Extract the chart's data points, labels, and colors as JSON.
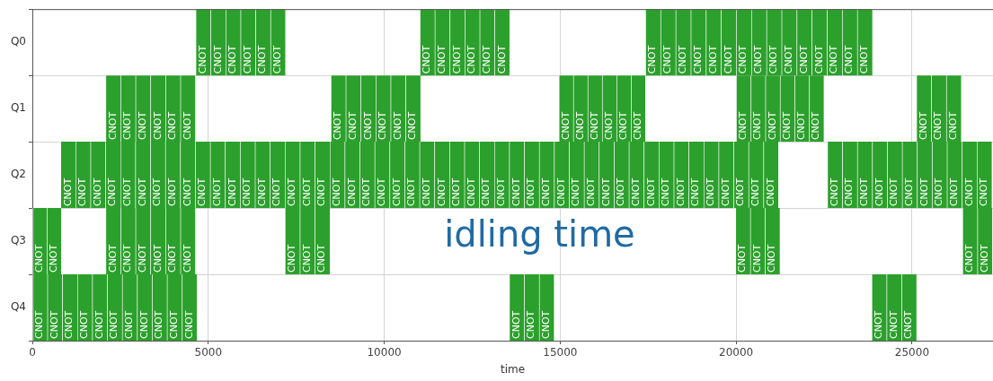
{
  "chart_data": {
    "type": "bar",
    "orientation": "horizontal",
    "categories": [
      "Q0",
      "Q1",
      "Q2",
      "Q3",
      "Q4"
    ],
    "color": "#2ca02c",
    "xlabel": "time",
    "xlim": [
      0,
      27300
    ],
    "xticks": [
      0,
      5000,
      10000,
      15000,
      20000,
      25000
    ],
    "grid": true,
    "annotations": [
      "idling time"
    ],
    "series": [
      {
        "values": [
          425,
          425,
          425,
          410,
          425
        ],
        "base": [
          4640,
          2080,
          800,
          0,
          0
        ],
        "value_labels": [
          "CNOT",
          "CNOT",
          "CNOT",
          "CNOT",
          "CNOT"
        ]
      },
      {
        "values": [
          425,
          425,
          425,
          410,
          425
        ],
        "base": [
          5065,
          2505,
          1225,
          410,
          425
        ],
        "value_labels": [
          "CNOT",
          "CNOT",
          "CNOT",
          "CNOT",
          "CNOT"
        ]
      },
      {
        "values": [
          425,
          425,
          425,
          425,
          425
        ],
        "base": [
          5490,
          2930,
          1650,
          2080,
          850
        ],
        "value_labels": [
          "CNOT",
          "CNOT",
          "CNOT",
          "CNOT",
          "CNOT"
        ]
      },
      {
        "values": [
          425,
          425,
          425,
          425,
          425
        ],
        "base": [
          5915,
          3355,
          2075,
          2505,
          1275
        ],
        "value_labels": [
          "CNOT",
          "CNOT",
          "CNOT",
          "CNOT",
          "CNOT"
        ]
      },
      {
        "values": [
          425,
          425,
          425,
          425,
          425
        ],
        "base": [
          6340,
          3780,
          2500,
          2930,
          1700
        ],
        "value_labels": [
          "CNOT",
          "CNOT",
          "CNOT",
          "CNOT",
          "CNOT"
        ]
      },
      {
        "values": [
          425,
          425,
          425,
          425,
          425
        ],
        "base": [
          6765,
          4205,
          2925,
          3355,
          2125
        ],
        "value_labels": [
          "CNOT",
          "CNOT",
          "CNOT",
          "CNOT",
          "CNOT"
        ]
      },
      {
        "values": [
          425,
          425,
          425,
          425,
          425
        ],
        "base": [
          11010,
          8480,
          3350,
          3780,
          2550
        ],
        "value_labels": [
          "CNOT",
          "CNOT",
          "CNOT",
          "CNOT",
          "CNOT"
        ]
      },
      {
        "values": [
          425,
          425,
          425,
          425,
          425
        ],
        "base": [
          11435,
          8905,
          3775,
          4205,
          2975
        ],
        "value_labels": [
          "CNOT",
          "CNOT",
          "CNOT",
          "CNOT",
          "CNOT"
        ]
      },
      {
        "values": [
          425,
          425,
          425,
          425,
          425
        ],
        "base": [
          11860,
          9330,
          4200,
          7175,
          3400
        ],
        "value_labels": [
          "CNOT",
          "CNOT",
          "CNOT",
          "CNOT",
          "CNOT"
        ]
      },
      {
        "values": [
          425,
          425,
          425,
          425,
          425
        ],
        "base": [
          12285,
          9755,
          4625,
          7600,
          3825
        ],
        "value_labels": [
          "CNOT",
          "CNOT",
          "CNOT",
          "CNOT",
          "CNOT"
        ]
      },
      {
        "values": [
          425,
          425,
          425,
          425,
          425
        ],
        "base": [
          12710,
          10180,
          5050,
          8025,
          4250
        ],
        "value_labels": [
          "CNOT",
          "CNOT",
          "CNOT",
          "CNOT",
          "CNOT"
        ]
      },
      {
        "values": [
          425,
          425,
          425,
          420,
          425
        ],
        "base": [
          13135,
          10605,
          5475,
          19980,
          13550
        ],
        "value_labels": [
          "CNOT",
          "CNOT",
          "CNOT",
          "CNOT",
          "CNOT"
        ]
      },
      {
        "values": [
          430,
          410,
          425,
          420,
          425
        ],
        "base": [
          17420,
          14960,
          5900,
          20400,
          13975
        ],
        "value_labels": [
          "CNOT",
          "CNOT",
          "CNOT",
          "CNOT",
          "CNOT"
        ]
      },
      {
        "values": [
          430,
          410,
          425,
          420,
          425
        ],
        "base": [
          17850,
          15370,
          6325,
          20820,
          14400
        ],
        "value_labels": [
          "CNOT",
          "CNOT",
          "CNOT",
          "CNOT",
          "CNOT"
        ]
      },
      {
        "values": [
          430,
          410,
          425,
          425,
          425
        ],
        "base": [
          18280,
          15780,
          6750,
          26430,
          23850
        ],
        "value_labels": [
          "CNOT",
          "CNOT",
          "CNOT",
          "CNOT",
          "CNOT"
        ]
      },
      {
        "values": [
          430,
          410,
          425,
          425,
          425
        ],
        "base": [
          18710,
          16190,
          7175,
          26855,
          24275
        ],
        "value_labels": [
          "CNOT",
          "CNOT",
          "CNOT",
          "CNOT",
          "CNOT"
        ]
      },
      {
        "values": [
          430,
          410,
          425,
          null,
          425
        ],
        "base": [
          19140,
          16600,
          7600,
          null,
          24700
        ],
        "value_labels": [
          "CNOT",
          "CNOT",
          "CNOT",
          null,
          "CNOT"
        ]
      },
      {
        "values": [
          430,
          410,
          425,
          null,
          null
        ],
        "base": [
          19570,
          17010,
          8025,
          null,
          null
        ],
        "value_labels": [
          "CNOT",
          "CNOT",
          "CNOT",
          null,
          null
        ]
      },
      {
        "values": [
          430,
          415,
          425,
          null,
          null
        ],
        "base": [
          20000,
          20000,
          8450,
          null,
          null
        ],
        "value_labels": [
          "CNOT",
          "CNOT",
          "CNOT",
          null,
          null
        ]
      },
      {
        "values": [
          430,
          415,
          425,
          null,
          null
        ],
        "base": [
          20430,
          20415,
          8875,
          null,
          null
        ],
        "value_labels": [
          "CNOT",
          "CNOT",
          "CNOT",
          null,
          null
        ]
      },
      {
        "values": [
          430,
          415,
          425,
          null,
          null
        ],
        "base": [
          20860,
          20830,
          9300,
          null,
          null
        ],
        "value_labels": [
          "CNOT",
          "CNOT",
          "CNOT",
          null,
          null
        ]
      },
      {
        "values": [
          430,
          415,
          425,
          null,
          null
        ],
        "base": [
          21290,
          21245,
          9725,
          null,
          null
        ],
        "value_labels": [
          "CNOT",
          "CNOT",
          "CNOT",
          null,
          null
        ]
      },
      {
        "values": [
          430,
          415,
          425,
          null,
          null
        ],
        "base": [
          21720,
          21660,
          10150,
          null,
          null
        ],
        "value_labels": [
          "CNOT",
          "CNOT",
          "CNOT",
          null,
          null
        ]
      },
      {
        "values": [
          430,
          415,
          425,
          null,
          null
        ],
        "base": [
          22150,
          22075,
          10575,
          null,
          null
        ],
        "value_labels": [
          "CNOT",
          "CNOT",
          "CNOT",
          null,
          null
        ]
      },
      {
        "values": [
          430,
          425,
          425,
          null,
          null
        ],
        "base": [
          22580,
          25120,
          11000,
          null,
          null
        ],
        "value_labels": [
          "CNOT",
          "CNOT",
          "CNOT",
          null,
          null
        ]
      },
      {
        "values": [
          430,
          425,
          425,
          null,
          null
        ],
        "base": [
          23010,
          25545,
          11425,
          null,
          null
        ],
        "value_labels": [
          "CNOT",
          "CNOT",
          "CNOT",
          null,
          null
        ]
      },
      {
        "values": [
          430,
          425,
          425,
          null,
          null
        ],
        "base": [
          23440,
          25970,
          11850,
          null,
          null
        ],
        "value_labels": [
          "CNOT",
          "CNOT",
          "CNOT",
          null,
          null
        ]
      },
      {
        "values": [
          null,
          null,
          425,
          null,
          null
        ],
        "base": [
          null,
          null,
          12275,
          null,
          null
        ],
        "value_labels": [
          null,
          null,
          "CNOT",
          null,
          null
        ]
      },
      {
        "values": [
          null,
          null,
          425,
          null,
          null
        ],
        "base": [
          null,
          null,
          12700,
          null,
          null
        ],
        "value_labels": [
          null,
          null,
          "CNOT",
          null,
          null
        ]
      },
      {
        "values": [
          null,
          null,
          425,
          null,
          null
        ],
        "base": [
          null,
          null,
          13125,
          null,
          null
        ],
        "value_labels": [
          null,
          null,
          "CNOT",
          null,
          null
        ]
      },
      {
        "values": [
          null,
          null,
          425,
          null,
          null
        ],
        "base": [
          null,
          null,
          13550,
          null,
          null
        ],
        "value_labels": [
          null,
          null,
          "CNOT",
          null,
          null
        ]
      },
      {
        "values": [
          null,
          null,
          425,
          null,
          null
        ],
        "base": [
          null,
          null,
          13975,
          null,
          null
        ],
        "value_labels": [
          null,
          null,
          "CNOT",
          null,
          null
        ]
      },
      {
        "values": [
          null,
          null,
          425,
          null,
          null
        ],
        "base": [
          null,
          null,
          14400,
          null,
          null
        ],
        "value_labels": [
          null,
          null,
          "CNOT",
          null,
          null
        ]
      },
      {
        "values": [
          null,
          null,
          425,
          null,
          null
        ],
        "base": [
          null,
          null,
          14825,
          null,
          null
        ],
        "value_labels": [
          null,
          null,
          "CNOT",
          null,
          null
        ]
      },
      {
        "values": [
          null,
          null,
          425,
          null,
          null
        ],
        "base": [
          null,
          null,
          15250,
          null,
          null
        ],
        "value_labels": [
          null,
          null,
          "CNOT",
          null,
          null
        ]
      },
      {
        "values": [
          null,
          null,
          425,
          null,
          null
        ],
        "base": [
          null,
          null,
          15675,
          null,
          null
        ],
        "value_labels": [
          null,
          null,
          "CNOT",
          null,
          null
        ]
      },
      {
        "values": [
          null,
          null,
          425,
          null,
          null
        ],
        "base": [
          null,
          null,
          16100,
          null,
          null
        ],
        "value_labels": [
          null,
          null,
          "CNOT",
          null,
          null
        ]
      },
      {
        "values": [
          null,
          null,
          425,
          null,
          null
        ],
        "base": [
          null,
          null,
          16525,
          null,
          null
        ],
        "value_labels": [
          null,
          null,
          "CNOT",
          null,
          null
        ]
      },
      {
        "values": [
          null,
          null,
          425,
          null,
          null
        ],
        "base": [
          null,
          null,
          16950,
          null,
          null
        ],
        "value_labels": [
          null,
          null,
          "CNOT",
          null,
          null
        ]
      },
      {
        "values": [
          null,
          null,
          425,
          null,
          null
        ],
        "base": [
          null,
          null,
          17375,
          null,
          null
        ],
        "value_labels": [
          null,
          null,
          "CNOT",
          null,
          null
        ]
      },
      {
        "values": [
          null,
          null,
          425,
          null,
          null
        ],
        "base": [
          null,
          null,
          17800,
          null,
          null
        ],
        "value_labels": [
          null,
          null,
          "CNOT",
          null,
          null
        ]
      },
      {
        "values": [
          null,
          null,
          425,
          null,
          null
        ],
        "base": [
          null,
          null,
          18225,
          null,
          null
        ],
        "value_labels": [
          null,
          null,
          "CNOT",
          null,
          null
        ]
      },
      {
        "values": [
          null,
          null,
          425,
          null,
          null
        ],
        "base": [
          null,
          null,
          18650,
          null,
          null
        ],
        "value_labels": [
          null,
          null,
          "CNOT",
          null,
          null
        ]
      },
      {
        "values": [
          null,
          null,
          425,
          null,
          null
        ],
        "base": [
          null,
          null,
          19075,
          null,
          null
        ],
        "value_labels": [
          null,
          null,
          "CNOT",
          null,
          null
        ]
      },
      {
        "values": [
          null,
          null,
          425,
          null,
          null
        ],
        "base": [
          null,
          null,
          19500,
          null,
          null
        ],
        "value_labels": [
          null,
          null,
          "CNOT",
          null,
          null
        ]
      },
      {
        "values": [
          null,
          null,
          425,
          null,
          null
        ],
        "base": [
          null,
          null,
          19925,
          null,
          null
        ],
        "value_labels": [
          null,
          null,
          "CNOT",
          null,
          null
        ]
      },
      {
        "values": [
          null,
          null,
          425,
          null,
          null
        ],
        "base": [
          null,
          null,
          20350,
          null,
          null
        ],
        "value_labels": [
          null,
          null,
          "CNOT",
          null,
          null
        ]
      },
      {
        "values": [
          null,
          null,
          425,
          null,
          null
        ],
        "base": [
          null,
          null,
          20775,
          null,
          null
        ],
        "value_labels": [
          null,
          null,
          "CNOT",
          null,
          null
        ]
      },
      {
        "values": [
          null,
          null,
          425,
          null,
          null
        ],
        "base": [
          null,
          null,
          22590,
          null,
          null
        ],
        "value_labels": [
          null,
          null,
          "CNOT",
          null,
          null
        ]
      },
      {
        "values": [
          null,
          null,
          425,
          null,
          null
        ],
        "base": [
          null,
          null,
          23015,
          null,
          null
        ],
        "value_labels": [
          null,
          null,
          "CNOT",
          null,
          null
        ]
      },
      {
        "values": [
          null,
          null,
          425,
          null,
          null
        ],
        "base": [
          null,
          null,
          23440,
          null,
          null
        ],
        "value_labels": [
          null,
          null,
          "CNOT",
          null,
          null
        ]
      },
      {
        "values": [
          null,
          null,
          425,
          null,
          null
        ],
        "base": [
          null,
          null,
          23865,
          null,
          null
        ],
        "value_labels": [
          null,
          null,
          "CNOT",
          null,
          null
        ]
      },
      {
        "values": [
          null,
          null,
          425,
          null,
          null
        ],
        "base": [
          null,
          null,
          24290,
          null,
          null
        ],
        "value_labels": [
          null,
          null,
          "CNOT",
          null,
          null
        ]
      },
      {
        "values": [
          null,
          null,
          425,
          null,
          null
        ],
        "base": [
          null,
          null,
          24715,
          null,
          null
        ],
        "value_labels": [
          null,
          null,
          "CNOT",
          null,
          null
        ]
      },
      {
        "values": [
          null,
          null,
          425,
          null,
          null
        ],
        "base": [
          null,
          null,
          25140,
          null,
          null
        ],
        "value_labels": [
          null,
          null,
          "CNOT",
          null,
          null
        ]
      },
      {
        "values": [
          null,
          null,
          425,
          null,
          null
        ],
        "base": [
          null,
          null,
          25565,
          null,
          null
        ],
        "value_labels": [
          null,
          null,
          "CNOT",
          null,
          null
        ]
      },
      {
        "values": [
          null,
          null,
          425,
          null,
          null
        ],
        "base": [
          null,
          null,
          25990,
          null,
          null
        ],
        "value_labels": [
          null,
          null,
          "CNOT",
          null,
          null
        ]
      },
      {
        "values": [
          null,
          null,
          425,
          null,
          null
        ],
        "base": [
          null,
          null,
          26415,
          null,
          null
        ],
        "value_labels": [
          null,
          null,
          "CNOT",
          null,
          null
        ]
      },
      {
        "values": [
          null,
          null,
          425,
          null,
          null
        ],
        "base": [
          null,
          null,
          26840,
          null,
          null
        ],
        "value_labels": [
          null,
          null,
          "CNOT",
          null,
          null
        ]
      }
    ]
  }
}
